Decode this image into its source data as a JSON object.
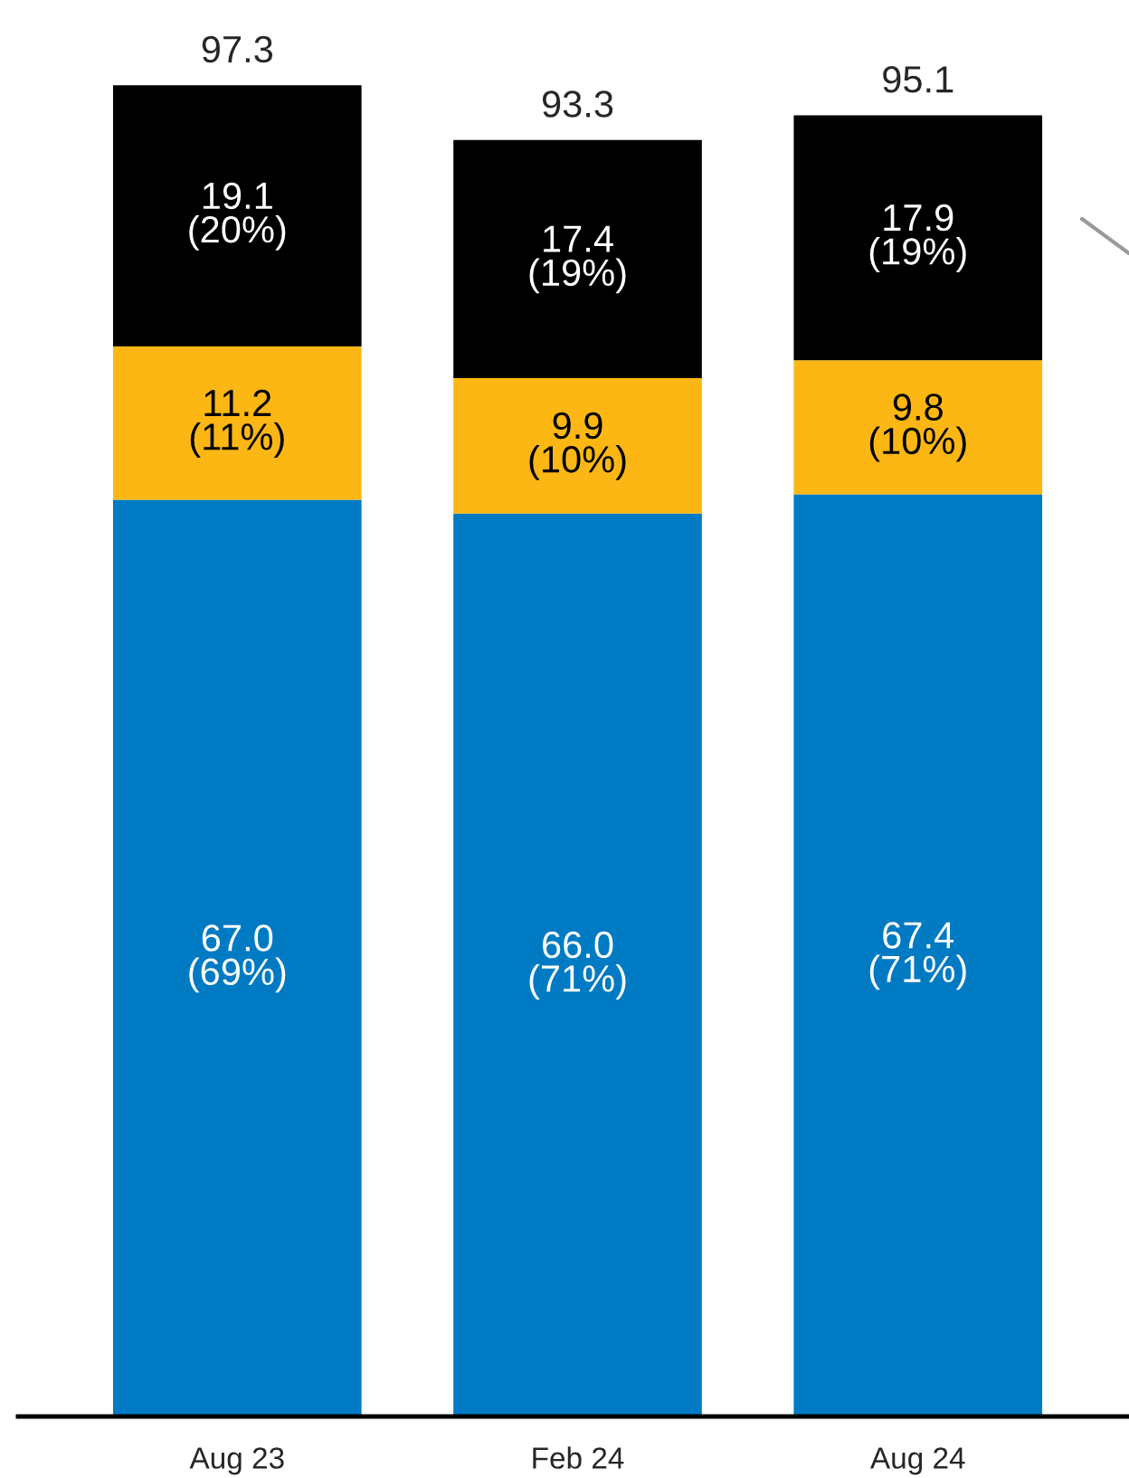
{
  "chart_data": {
    "type": "bar",
    "stacked": true,
    "categories": [
      "Aug 23",
      "Feb 24",
      "Aug 24"
    ],
    "series": [
      {
        "color": "#007ac2",
        "values": [
          67.0,
          66.0,
          67.4
        ],
        "value_labels": [
          "67.0\n(69%)",
          "66.0\n(71%)",
          "67.4\n(71%)"
        ]
      },
      {
        "color": "#fdb714",
        "values": [
          11.2,
          9.9,
          9.8
        ],
        "value_labels": [
          "11.2\n(11%)",
          "9.9\n(10%)",
          "9.8\n(10%)"
        ]
      },
      {
        "color": "#000000",
        "values": [
          19.1,
          17.4,
          17.9
        ],
        "value_labels": [
          "19.1\n(20%)",
          "17.4\n(19%)",
          "17.9\n(19%)"
        ]
      }
    ],
    "totals": [
      "97.3",
      "93.3",
      "95.1"
    ],
    "grid": false,
    "legend": false
  }
}
